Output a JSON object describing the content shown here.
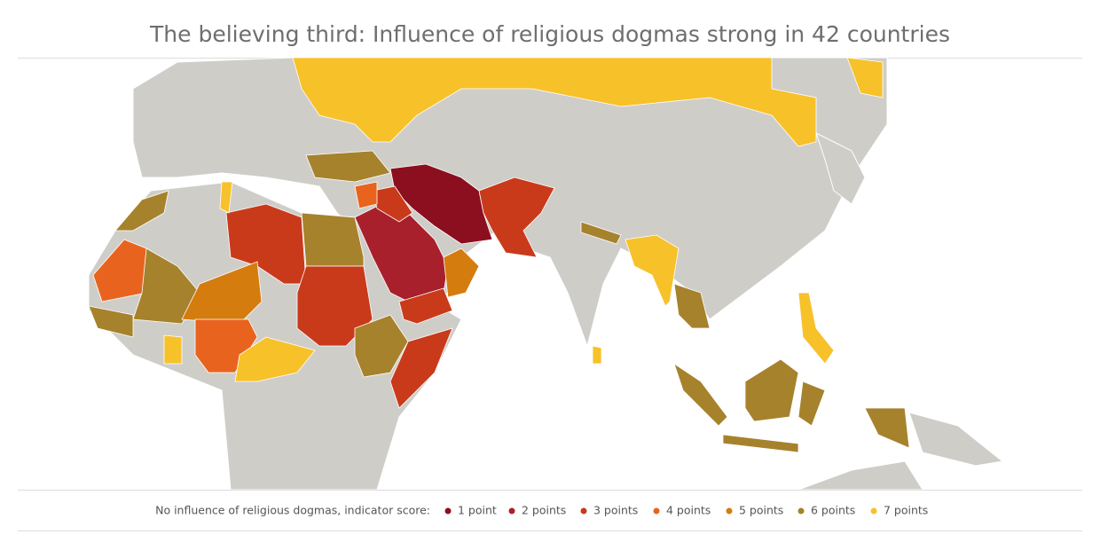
{
  "title": "The believing third: Influence of religious dogmas strong in 42 countries",
  "legend": {
    "label": "No influence of religious dogmas, indicator score:",
    "items": [
      {
        "label": "1 point",
        "color": "#8b0f1e"
      },
      {
        "label": "2 points",
        "color": "#a8202c"
      },
      {
        "label": "3 points",
        "color": "#c93a1b"
      },
      {
        "label": "4 points",
        "color": "#e8641e"
      },
      {
        "label": "5 points",
        "color": "#d47c0e"
      },
      {
        "label": "6 points",
        "color": "#a6822c"
      },
      {
        "label": "7 points",
        "color": "#f7c12a"
      }
    ]
  }
}
